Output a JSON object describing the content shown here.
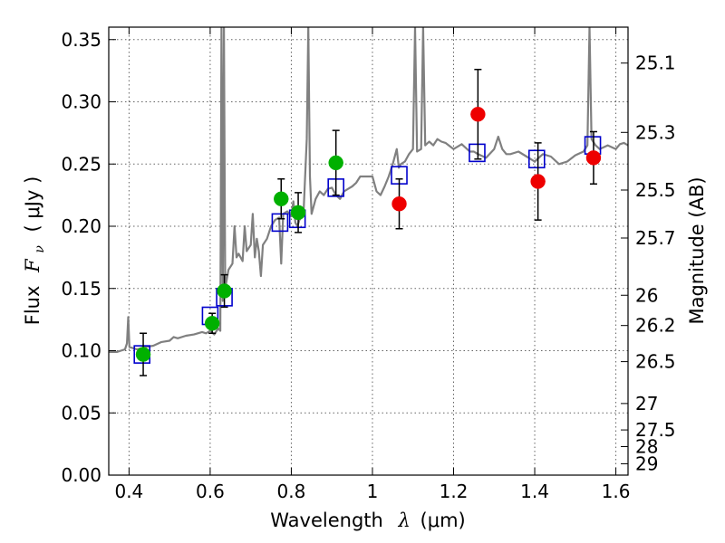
{
  "chart_data": {
    "type": "scatter",
    "xlabel_main": "Wavelength",
    "xlabel_symbol": "λ",
    "xlabel_unit": "(μm)",
    "ylabel_main": "Flux",
    "ylabel_symbol": "F",
    "ylabel_symbol_sub": "ν",
    "ylabel_unit": "( μJy )",
    "y2label": "Magnitude (AB)",
    "xlim": [
      0.35,
      1.63
    ],
    "ylim": [
      0.0,
      0.36
    ],
    "grid": true,
    "x_ticks": [
      {
        "value": 0.4,
        "label": "0.4"
      },
      {
        "value": 0.6,
        "label": "0.6"
      },
      {
        "value": 0.8,
        "label": "0.8"
      },
      {
        "value": 1.0,
        "label": "1"
      },
      {
        "value": 1.2,
        "label": "1.2"
      },
      {
        "value": 1.4,
        "label": "1.4"
      },
      {
        "value": 1.6,
        "label": "1.6"
      }
    ],
    "y_ticks": [
      {
        "value": 0.0,
        "label": "0.00"
      },
      {
        "value": 0.05,
        "label": "0.05"
      },
      {
        "value": 0.1,
        "label": "0.10"
      },
      {
        "value": 0.15,
        "label": "0.15"
      },
      {
        "value": 0.2,
        "label": "0.20"
      },
      {
        "value": 0.25,
        "label": "0.25"
      },
      {
        "value": 0.3,
        "label": "0.30"
      },
      {
        "value": 0.35,
        "label": "0.35"
      }
    ],
    "y2_ticks": [
      {
        "mag": 25.1,
        "label": "25.1"
      },
      {
        "mag": 25.3,
        "label": "25.3"
      },
      {
        "mag": 25.5,
        "label": "25.5"
      },
      {
        "mag": 25.7,
        "label": "25.7"
      },
      {
        "mag": 26.0,
        "label": "26"
      },
      {
        "mag": 26.2,
        "label": "26.2"
      },
      {
        "mag": 26.5,
        "label": "26.5"
      },
      {
        "mag": 27.0,
        "label": "27"
      },
      {
        "mag": 27.5,
        "label": "27.5"
      },
      {
        "mag": 28.0,
        "label": "28"
      },
      {
        "mag": 29.0,
        "label": "29"
      }
    ],
    "series": [
      {
        "kind": "line",
        "color": "#808080",
        "points": [
          [
            0.35,
            0.099
          ],
          [
            0.37,
            0.099
          ],
          [
            0.38,
            0.1
          ],
          [
            0.39,
            0.101
          ],
          [
            0.395,
            0.106
          ],
          [
            0.398,
            0.127
          ],
          [
            0.401,
            0.103
          ],
          [
            0.42,
            0.101
          ],
          [
            0.44,
            0.103
          ],
          [
            0.46,
            0.104
          ],
          [
            0.48,
            0.107
          ],
          [
            0.5,
            0.108
          ],
          [
            0.51,
            0.111
          ],
          [
            0.52,
            0.11
          ],
          [
            0.54,
            0.112
          ],
          [
            0.56,
            0.113
          ],
          [
            0.58,
            0.115
          ],
          [
            0.59,
            0.114
          ],
          [
            0.6,
            0.116
          ],
          [
            0.61,
            0.113
          ],
          [
            0.62,
            0.118
          ],
          [
            0.625,
            0.116
          ],
          [
            0.628,
            0.36
          ],
          [
            0.631,
            0.14
          ],
          [
            0.634,
            0.36
          ],
          [
            0.637,
            0.15
          ],
          [
            0.645,
            0.165
          ],
          [
            0.655,
            0.17
          ],
          [
            0.66,
            0.2
          ],
          [
            0.665,
            0.175
          ],
          [
            0.67,
            0.178
          ],
          [
            0.68,
            0.172
          ],
          [
            0.685,
            0.2
          ],
          [
            0.69,
            0.18
          ],
          [
            0.7,
            0.185
          ],
          [
            0.705,
            0.21
          ],
          [
            0.71,
            0.175
          ],
          [
            0.715,
            0.19
          ],
          [
            0.72,
            0.18
          ],
          [
            0.725,
            0.16
          ],
          [
            0.73,
            0.185
          ],
          [
            0.74,
            0.19
          ],
          [
            0.75,
            0.2
          ],
          [
            0.76,
            0.205
          ],
          [
            0.77,
            0.207
          ],
          [
            0.775,
            0.17
          ],
          [
            0.78,
            0.21
          ],
          [
            0.79,
            0.212
          ],
          [
            0.8,
            0.208
          ],
          [
            0.805,
            0.22
          ],
          [
            0.81,
            0.203
          ],
          [
            0.815,
            0.2
          ],
          [
            0.82,
            0.205
          ],
          [
            0.83,
            0.21
          ],
          [
            0.838,
            0.27
          ],
          [
            0.842,
            0.36
          ],
          [
            0.846,
            0.24
          ],
          [
            0.85,
            0.21
          ],
          [
            0.86,
            0.222
          ],
          [
            0.87,
            0.228
          ],
          [
            0.88,
            0.225
          ],
          [
            0.89,
            0.23
          ],
          [
            0.9,
            0.231
          ],
          [
            0.91,
            0.225
          ],
          [
            0.92,
            0.222
          ],
          [
            0.93,
            0.228
          ],
          [
            0.94,
            0.23
          ],
          [
            0.95,
            0.232
          ],
          [
            0.96,
            0.235
          ],
          [
            0.97,
            0.24
          ],
          [
            0.98,
            0.24
          ],
          [
            0.99,
            0.24
          ],
          [
            1.0,
            0.24
          ],
          [
            1.01,
            0.228
          ],
          [
            1.02,
            0.225
          ],
          [
            1.03,
            0.232
          ],
          [
            1.04,
            0.24
          ],
          [
            1.05,
            0.25
          ],
          [
            1.06,
            0.262
          ],
          [
            1.065,
            0.247
          ],
          [
            1.07,
            0.25
          ],
          [
            1.08,
            0.252
          ],
          [
            1.09,
            0.258
          ],
          [
            1.1,
            0.262
          ],
          [
            1.105,
            0.36
          ],
          [
            1.11,
            0.26
          ],
          [
            1.12,
            0.262
          ],
          [
            1.125,
            0.36
          ],
          [
            1.13,
            0.265
          ],
          [
            1.14,
            0.268
          ],
          [
            1.15,
            0.265
          ],
          [
            1.16,
            0.27
          ],
          [
            1.17,
            0.268
          ],
          [
            1.18,
            0.267
          ],
          [
            1.2,
            0.262
          ],
          [
            1.22,
            0.266
          ],
          [
            1.24,
            0.26
          ],
          [
            1.25,
            0.26
          ],
          [
            1.26,
            0.258
          ],
          [
            1.28,
            0.255
          ],
          [
            1.3,
            0.262
          ],
          [
            1.31,
            0.272
          ],
          [
            1.32,
            0.262
          ],
          [
            1.33,
            0.258
          ],
          [
            1.34,
            0.258
          ],
          [
            1.36,
            0.26
          ],
          [
            1.38,
            0.256
          ],
          [
            1.4,
            0.252
          ],
          [
            1.42,
            0.258
          ],
          [
            1.44,
            0.256
          ],
          [
            1.46,
            0.25
          ],
          [
            1.48,
            0.252
          ],
          [
            1.5,
            0.257
          ],
          [
            1.52,
            0.26
          ],
          [
            1.53,
            0.265
          ],
          [
            1.535,
            0.36
          ],
          [
            1.54,
            0.27
          ],
          [
            1.55,
            0.265
          ],
          [
            1.56,
            0.262
          ],
          [
            1.58,
            0.265
          ],
          [
            1.6,
            0.262
          ],
          [
            1.61,
            0.266
          ],
          [
            1.62,
            0.267
          ],
          [
            1.63,
            0.265
          ]
        ]
      },
      {
        "kind": "open-square",
        "color": "#0000cc",
        "x": [
          0.432,
          0.6,
          0.635,
          0.772,
          0.815,
          0.91,
          1.066,
          1.258,
          1.405,
          1.543
        ],
        "y": [
          0.097,
          0.128,
          0.143,
          0.203,
          0.206,
          0.231,
          0.241,
          0.259,
          0.254,
          0.265
        ]
      },
      {
        "kind": "point",
        "color": "#00b000",
        "x": [
          0.435,
          0.605,
          0.635,
          0.775,
          0.817,
          0.91
        ],
        "y": [
          0.097,
          0.122,
          0.148,
          0.222,
          0.211,
          0.251
        ],
        "err": [
          0.017,
          0.008,
          0.013,
          0.016,
          0.016,
          0.026
        ]
      },
      {
        "kind": "point",
        "color": "#ee0000",
        "x": [
          1.066,
          1.26,
          1.408,
          1.545
        ],
        "y": [
          0.218,
          0.29,
          0.236,
          0.255
        ],
        "err": [
          0.02,
          0.036,
          0.031,
          0.021
        ]
      }
    ]
  }
}
